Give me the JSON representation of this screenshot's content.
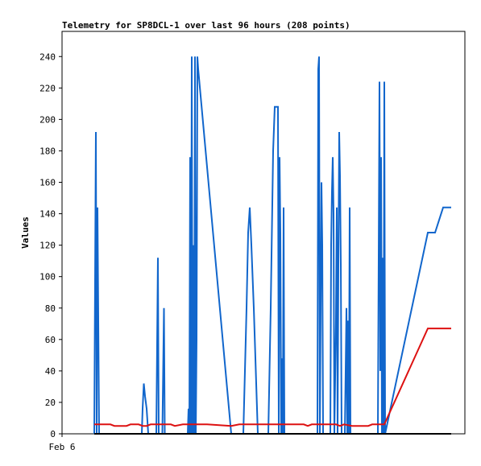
{
  "chart_data": {
    "type": "line",
    "title": "Telemetry for SP8DCL-1 over last 96 hours (208 points)",
    "ylabel": "Values",
    "xlabel": "",
    "x_tick_labels": [
      "Feb 6"
    ],
    "y_ticks": [
      0,
      20,
      40,
      60,
      80,
      100,
      120,
      140,
      160,
      180,
      200,
      220,
      240
    ],
    "ylim": [
      0,
      256
    ],
    "xlim": [
      0,
      100
    ],
    "grid": false,
    "colors": {
      "blue": "#1166cc",
      "red": "#dd1111",
      "black": "#000000"
    },
    "series": [
      {
        "color": "#1166cc",
        "points": [
          [
            8.0,
            0
          ],
          [
            8.2,
            96
          ],
          [
            8.4,
            192
          ],
          [
            8.6,
            0
          ],
          [
            8.8,
            144
          ],
          [
            9.0,
            72
          ],
          [
            9.2,
            0
          ],
          [
            19.8,
            0
          ],
          [
            20.0,
            16
          ],
          [
            20.3,
            32
          ],
          [
            20.6,
            24
          ],
          [
            21.0,
            16
          ],
          [
            21.4,
            0
          ],
          [
            23.4,
            0
          ],
          [
            23.6,
            56
          ],
          [
            23.8,
            112
          ],
          [
            24.0,
            0
          ],
          [
            24.9,
            0
          ],
          [
            25.1,
            40
          ],
          [
            25.3,
            80
          ],
          [
            25.5,
            0
          ],
          [
            31.2,
            0
          ],
          [
            31.4,
            16
          ],
          [
            31.6,
            0
          ],
          [
            31.8,
            176
          ],
          [
            32.0,
            0
          ],
          [
            32.2,
            240
          ],
          [
            32.4,
            0
          ],
          [
            32.6,
            120
          ],
          [
            32.8,
            0
          ],
          [
            33.0,
            240
          ],
          [
            33.2,
            0
          ],
          [
            33.4,
            60
          ],
          [
            33.6,
            240
          ],
          [
            33.8,
            232
          ],
          [
            42.0,
            0
          ],
          [
            45.0,
            0
          ],
          [
            45.4,
            40
          ],
          [
            45.8,
            80
          ],
          [
            46.2,
            128
          ],
          [
            46.6,
            144
          ],
          [
            47.0,
            120
          ],
          [
            47.6,
            80
          ],
          [
            48.6,
            0
          ],
          [
            51.2,
            0
          ],
          [
            51.8,
            80
          ],
          [
            52.4,
            180
          ],
          [
            52.8,
            208
          ],
          [
            53.6,
            208
          ],
          [
            53.8,
            0
          ],
          [
            54.0,
            176
          ],
          [
            54.2,
            128
          ],
          [
            54.4,
            0
          ],
          [
            54.6,
            48
          ],
          [
            54.8,
            0
          ],
          [
            55.0,
            144
          ],
          [
            55.2,
            0
          ],
          [
            63.4,
            0
          ],
          [
            63.6,
            232
          ],
          [
            63.8,
            240
          ],
          [
            64.0,
            0
          ],
          [
            64.2,
            80
          ],
          [
            64.4,
            160
          ],
          [
            64.6,
            120
          ],
          [
            64.8,
            0
          ],
          [
            66.6,
            0
          ],
          [
            66.8,
            120
          ],
          [
            67.0,
            154
          ],
          [
            67.2,
            176
          ],
          [
            67.4,
            140
          ],
          [
            67.6,
            0
          ],
          [
            68.0,
            72
          ],
          [
            68.2,
            144
          ],
          [
            68.4,
            0
          ],
          [
            68.6,
            108
          ],
          [
            68.8,
            192
          ],
          [
            69.0,
            164
          ],
          [
            69.2,
            108
          ],
          [
            69.4,
            0
          ],
          [
            70.2,
            0
          ],
          [
            70.4,
            40
          ],
          [
            70.6,
            80
          ],
          [
            70.8,
            0
          ],
          [
            71.0,
            72
          ],
          [
            71.2,
            0
          ],
          [
            71.4,
            144
          ],
          [
            71.6,
            0
          ],
          [
            78.4,
            0
          ],
          [
            78.6,
            112
          ],
          [
            78.8,
            224
          ],
          [
            79.0,
            40
          ],
          [
            79.2,
            176
          ],
          [
            79.4,
            0
          ],
          [
            79.6,
            112
          ],
          [
            79.8,
            0
          ],
          [
            80.0,
            224
          ],
          [
            80.2,
            0
          ],
          [
            90.8,
            128
          ],
          [
            92.6,
            128
          ],
          [
            94.6,
            144
          ],
          [
            96.6,
            144
          ]
        ]
      },
      {
        "color": "#dd1111",
        "points": [
          [
            8.0,
            6
          ],
          [
            12.0,
            6
          ],
          [
            13.0,
            5
          ],
          [
            16.0,
            5
          ],
          [
            17.0,
            6
          ],
          [
            19.0,
            6
          ],
          [
            20.0,
            5
          ],
          [
            21.0,
            5
          ],
          [
            22.0,
            6
          ],
          [
            27.0,
            6
          ],
          [
            28.0,
            5
          ],
          [
            30.0,
            6
          ],
          [
            36.0,
            6
          ],
          [
            42.0,
            5
          ],
          [
            44.0,
            6
          ],
          [
            60.0,
            6
          ],
          [
            61.0,
            5
          ],
          [
            62.0,
            6
          ],
          [
            68.0,
            6
          ],
          [
            69.0,
            5
          ],
          [
            70.0,
            6
          ],
          [
            72.0,
            5
          ],
          [
            76.0,
            5
          ],
          [
            77.0,
            6
          ],
          [
            80.0,
            6
          ],
          [
            90.8,
            67
          ],
          [
            96.6,
            67
          ]
        ]
      },
      {
        "color": "#000000",
        "points": [
          [
            8.0,
            0
          ],
          [
            96.6,
            0
          ]
        ]
      }
    ]
  }
}
